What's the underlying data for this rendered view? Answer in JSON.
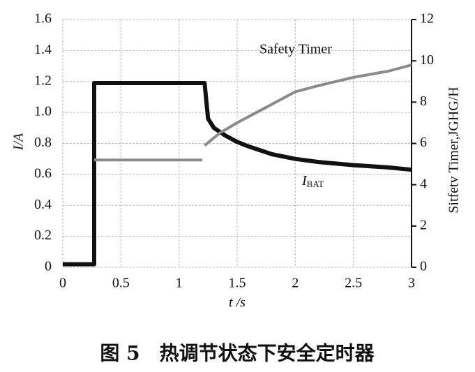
{
  "chart_data": {
    "type": "line",
    "xlabel": "t /s",
    "ylabel": "I/A",
    "y2label": "Sitfetv Timer,JGHG/H",
    "caption": "图 5　热调节状态下安全定时器",
    "xlim": [
      0,
      3
    ],
    "xticks": [
      0,
      0.5,
      1,
      1.5,
      2,
      2.5,
      3
    ],
    "ylim": [
      0,
      1.6
    ],
    "yticks": [
      0,
      0.2,
      0.4,
      0.6,
      0.8,
      {
        "value": 1,
        "label": "1.0"
      },
      1.2,
      1.4,
      1.6
    ],
    "y2lim": [
      0,
      12
    ],
    "y2ticks": [
      0,
      2,
      4,
      6,
      8,
      10,
      12
    ],
    "grid": true,
    "series": [
      {
        "name": "IBAT",
        "color": "#111111",
        "x": [
          0,
          0.27,
          0.27,
          0.5,
          1.0,
          1.22,
          1.25,
          1.3,
          1.4,
          1.5,
          1.6,
          1.8,
          2.0,
          2.2,
          2.5,
          2.8,
          3.0
        ],
        "values": [
          0.02,
          0.02,
          1.19,
          1.19,
          1.19,
          1.19,
          0.96,
          0.9,
          0.85,
          0.81,
          0.78,
          0.73,
          0.7,
          0.68,
          0.66,
          0.645,
          0.63
        ]
      },
      {
        "name": "Safety Timer",
        "color": "#8a8a8a",
        "axis": "y2",
        "x": [
          0.27,
          1.2,
          1.21,
          1.22,
          1.35,
          1.5,
          1.7,
          1.9,
          2.0,
          2.2,
          2.5,
          2.8,
          3.0
        ],
        "values": [
          5.2,
          5.2,
          null,
          5.9,
          6.5,
          7.0,
          7.6,
          8.2,
          8.5,
          8.8,
          9.2,
          9.5,
          9.8
        ]
      }
    ]
  }
}
